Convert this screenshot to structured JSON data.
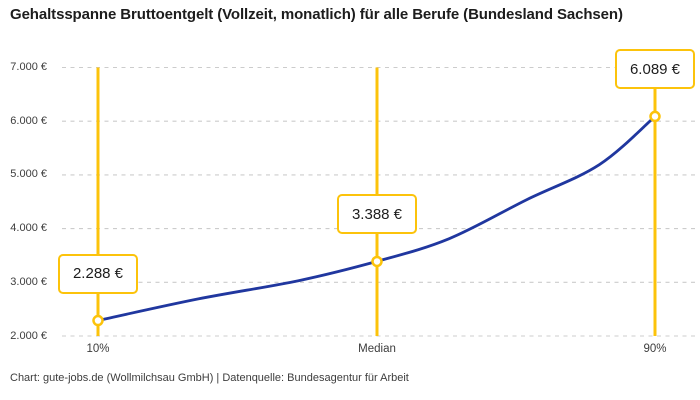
{
  "title": "Gehaltsspanne Bruttoentgelt (Vollzeit, monatlich) für alle Berufe (Bundesland Sachsen)",
  "footer": "Chart: gute-jobs.de (Wollmilchsau GmbH) | Datenquelle: Bundesagentur für Arbeit",
  "colors": {
    "accent_yellow": "#FCC30B",
    "curve_blue": "#20379F",
    "gridline_gray": "#CCCCCC",
    "text_dark": "#1D1D1D",
    "text_muted": "#3D3D3D"
  },
  "chart_data": {
    "type": "line",
    "title": "Gehaltsspanne Bruttoentgelt (Vollzeit, monatlich) für alle Berufe (Bundesland Sachsen)",
    "x_tick_labels": [
      "10%",
      "Median",
      "90%"
    ],
    "y_tick_labels": [
      "2.000 €",
      "3.000 €",
      "4.000 €",
      "5.000 €",
      "6.000 €",
      "7.000 €"
    ],
    "y_tick_values": [
      2000,
      3000,
      4000,
      5000,
      6000,
      7000
    ],
    "ylim": [
      2000,
      7000
    ],
    "grid": "horizontal-dashed",
    "legend": "none",
    "points": [
      {
        "percentile": "10%",
        "value": 2288,
        "value_label": "2.288 €"
      },
      {
        "percentile": "Median",
        "value": 3388,
        "value_label": "3.388 €"
      },
      {
        "percentile": "90%",
        "value": 6089,
        "value_label": "6.089 €"
      }
    ],
    "curve_samples": [
      {
        "t": 0.0,
        "value": 2288
      },
      {
        "t": 0.18,
        "value": 2690
      },
      {
        "t": 0.36,
        "value": 3030
      },
      {
        "t": 0.5,
        "value": 3388
      },
      {
        "t": 0.63,
        "value": 3810
      },
      {
        "t": 0.77,
        "value": 4540
      },
      {
        "t": 0.9,
        "value": 5190
      },
      {
        "t": 1.0,
        "value": 6089
      }
    ]
  }
}
